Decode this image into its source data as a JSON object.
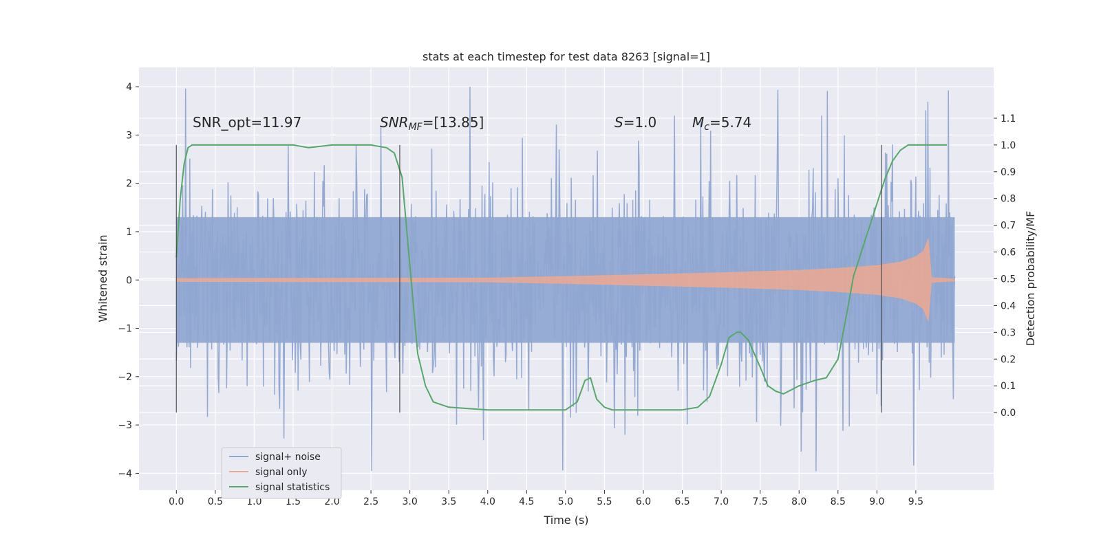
{
  "chart_data": {
    "type": "line",
    "title": "stats at each timestep for test data 8263 [signal=1]",
    "xlabel": "Time (s)",
    "ylabel": "Whitened strain",
    "y2label": "Detection probability/MF",
    "xlim": [
      -0.48,
      10.5
    ],
    "ylim": [
      -4.35,
      4.4
    ],
    "y2lim": [
      -0.29,
      1.29
    ],
    "x_ticks": [
      0.0,
      0.5,
      1.0,
      1.5,
      2.0,
      2.5,
      3.0,
      3.5,
      4.0,
      4.5,
      5.0,
      5.5,
      6.0,
      6.5,
      7.0,
      7.5,
      8.0,
      8.5,
      9.0,
      9.5
    ],
    "x_tick_labels": [
      "0.0",
      "0.5",
      "1.0",
      "1.5",
      "2.0",
      "2.5",
      "3.0",
      "3.5",
      "4.0",
      "4.5",
      "5.0",
      "5.5",
      "6.0",
      "6.5",
      "7.0",
      "7.5",
      "8.0",
      "8.5",
      "9.0",
      "9.5"
    ],
    "y_ticks": [
      4,
      3,
      2,
      1,
      0,
      -1,
      -2,
      -3,
      -4
    ],
    "y_tick_labels": [
      "4",
      "3",
      "2",
      "1",
      "0",
      "−1",
      "−2",
      "−3",
      "−4"
    ],
    "y2_ticks": [
      1.1,
      1.0,
      0.9,
      0.8,
      0.7,
      0.6,
      0.5,
      0.4,
      0.3,
      0.2,
      0.1,
      0.0
    ],
    "y2_tick_labels": [
      "1.1",
      "1.0",
      "0.9",
      "0.8",
      "0.7",
      "0.6",
      "0.5",
      "0.4",
      "0.3",
      "0.2",
      "0.1",
      "0.0"
    ],
    "grid": true,
    "legend_position": "bottom-left",
    "annotations": {
      "snr_opt": "SNR_opt=11.97",
      "snr_mf_main": "SNR",
      "snr_mf_sub": "MF",
      "snr_mf_value": "=[13.85]",
      "s_var": "S",
      "s_value": "=1.0",
      "mc_var": "M",
      "mc_sub": "c",
      "mc_value": "=5.74"
    },
    "markers_x": [
      0.0,
      2.87,
      9.06
    ],
    "marker_y_range": [
      0.0,
      1.0
    ],
    "series": [
      {
        "name": "signal+ noise",
        "color": "#8fa6d1",
        "axis": "left",
        "x_range": [
          0.0,
          10.0
        ],
        "envelope_core": 1.3,
        "spike_range": [
          -4.0,
          4.0
        ]
      },
      {
        "name": "signal only",
        "color": "#e8a995",
        "axis": "left",
        "x": [
          0.0,
          4.0,
          5.0,
          6.0,
          7.0,
          8.0,
          8.5,
          9.0,
          9.3,
          9.5,
          9.6,
          9.66,
          9.7,
          10.0
        ],
        "amplitude": [
          0.03,
          0.04,
          0.07,
          0.11,
          0.15,
          0.2,
          0.24,
          0.3,
          0.37,
          0.48,
          0.6,
          0.85,
          0.05,
          0.02
        ]
      },
      {
        "name": "signal statistics",
        "color": "#55a868",
        "axis": "right",
        "x": [
          0.0,
          0.05,
          0.1,
          0.15,
          0.2,
          0.3,
          0.5,
          1.0,
          1.5,
          1.7,
          2.0,
          2.2,
          2.5,
          2.7,
          2.8,
          2.9,
          3.0,
          3.1,
          3.2,
          3.3,
          3.5,
          4.0,
          4.5,
          5.0,
          5.15,
          5.25,
          5.32,
          5.4,
          5.5,
          5.6,
          5.8,
          6.0,
          6.5,
          6.7,
          6.85,
          7.0,
          7.1,
          7.2,
          7.25,
          7.35,
          7.5,
          7.6,
          7.7,
          7.8,
          8.0,
          8.2,
          8.35,
          8.5,
          8.6,
          8.7,
          8.8,
          8.9,
          9.0,
          9.1,
          9.2,
          9.3,
          9.4,
          9.5,
          9.6,
          9.8,
          9.9
        ],
        "y": [
          0.58,
          0.8,
          0.93,
          0.99,
          1.0,
          1.0,
          1.0,
          1.0,
          1.0,
          0.99,
          1.0,
          1.0,
          1.0,
          0.99,
          0.97,
          0.88,
          0.55,
          0.22,
          0.1,
          0.04,
          0.02,
          0.01,
          0.01,
          0.01,
          0.04,
          0.12,
          0.13,
          0.05,
          0.02,
          0.01,
          0.01,
          0.01,
          0.01,
          0.02,
          0.06,
          0.18,
          0.28,
          0.3,
          0.3,
          0.27,
          0.17,
          0.1,
          0.08,
          0.07,
          0.1,
          0.12,
          0.13,
          0.2,
          0.35,
          0.51,
          0.6,
          0.69,
          0.78,
          0.87,
          0.94,
          0.98,
          1.0,
          1.0,
          1.0,
          1.0,
          1.0
        ]
      }
    ]
  }
}
